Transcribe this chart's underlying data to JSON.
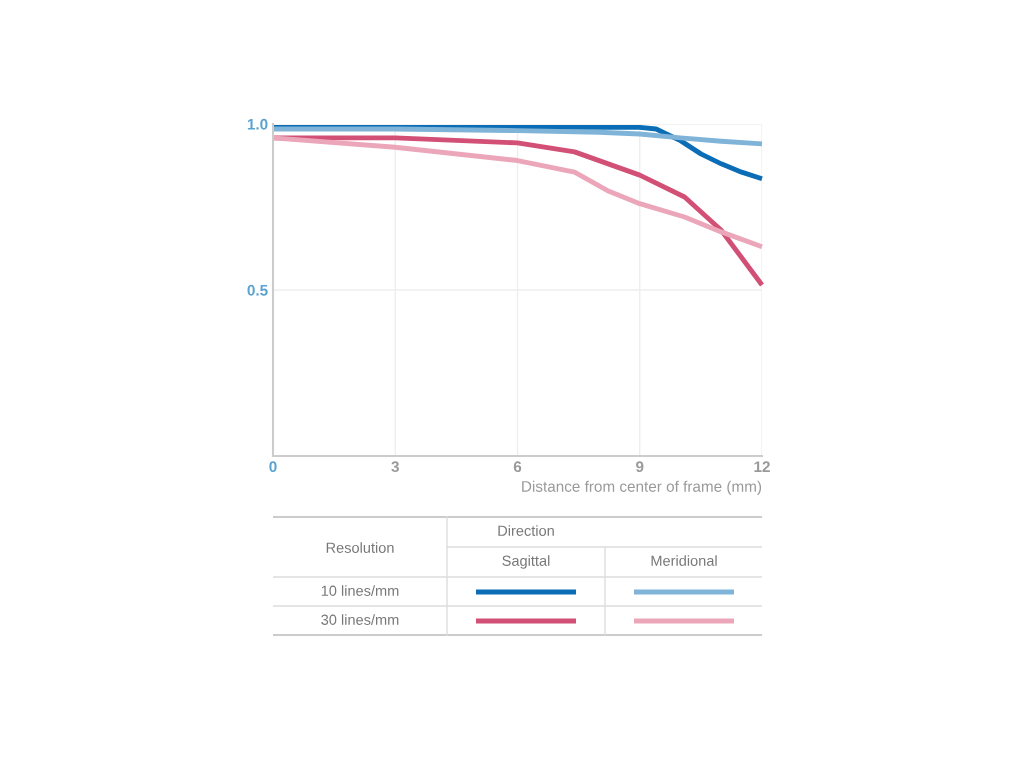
{
  "chart_data": {
    "type": "line",
    "xlabel": "Distance from center of frame (mm)",
    "xlim": [
      0,
      12
    ],
    "xticks": [
      0,
      3,
      6,
      9,
      12
    ],
    "ylim": [
      0,
      1.0
    ],
    "yticks": [
      {
        "value": 0,
        "label": null
      },
      0.5,
      {
        "value": 1,
        "label": "1.0"
      }
    ],
    "grid": true,
    "marker": "none",
    "line_style": "solid",
    "annotations": [
      "Resolution",
      "Direction",
      "Sagittal",
      "Meridional",
      "10 lines/mm",
      "30 lines/mm"
    ],
    "series": [
      {
        "color": "#0a6db5",
        "x": [
          0,
          3,
          6,
          9,
          9.4,
          10,
          10.5,
          11,
          11.5,
          12
        ],
        "values": [
          0.99,
          0.99,
          0.99,
          0.99,
          0.985,
          0.95,
          0.91,
          0.88,
          0.855,
          0.835
        ]
      },
      {
        "color": "#7fb4d8",
        "x": [
          0,
          3,
          6,
          8,
          9,
          10,
          11,
          12
        ],
        "values": [
          0.985,
          0.985,
          0.98,
          0.975,
          0.97,
          0.958,
          0.948,
          0.94
        ]
      },
      {
        "color": "#d24f75",
        "x": [
          0,
          3,
          6,
          7.4,
          9,
          10.1,
          11,
          12
        ],
        "values": [
          0.958,
          0.958,
          0.943,
          0.916,
          0.846,
          0.78,
          0.68,
          0.515
        ]
      },
      {
        "color": "#eba6ba",
        "x": [
          0,
          3,
          6,
          7.4,
          8.2,
          9,
          10.1,
          11,
          12
        ],
        "values": [
          0.958,
          0.93,
          0.89,
          0.855,
          0.8,
          0.76,
          0.72,
          0.675,
          0.63
        ]
      }
    ]
  }
}
